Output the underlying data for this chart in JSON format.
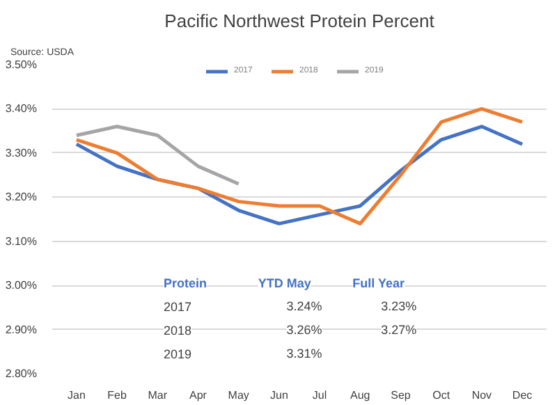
{
  "chart_data": {
    "type": "line",
    "title": "Pacific Northwest Protein Percent",
    "categories": [
      "Jan",
      "Feb",
      "Mar",
      "Apr",
      "May",
      "Jun",
      "Jul",
      "Aug",
      "Sep",
      "Oct",
      "Nov",
      "Dec"
    ],
    "series": [
      {
        "name": "2017",
        "color": "#4472c4",
        "values": [
          3.32,
          3.27,
          3.24,
          3.22,
          3.17,
          3.14,
          3.16,
          3.18,
          3.26,
          3.33,
          3.36,
          3.32
        ]
      },
      {
        "name": "2018",
        "color": "#ed7d31",
        "values": [
          3.33,
          3.3,
          3.24,
          3.22,
          3.19,
          3.18,
          3.18,
          3.14,
          3.25,
          3.37,
          3.4,
          3.37
        ]
      },
      {
        "name": "2019",
        "color": "#a5a5a5",
        "values": [
          3.34,
          3.36,
          3.34,
          3.27,
          3.23,
          null,
          null,
          null,
          null,
          null,
          null,
          null
        ]
      }
    ],
    "ylim": [
      2.8,
      3.5
    ],
    "yticks": [
      {
        "value": 2.8,
        "label": "2.80%"
      },
      {
        "value": 2.9,
        "label": "2.90%"
      },
      {
        "value": 3.0,
        "label": "3.00%"
      },
      {
        "value": 3.1,
        "label": "3.10%"
      },
      {
        "value": 3.2,
        "label": "3.20%"
      },
      {
        "value": 3.3,
        "label": "3.30%"
      },
      {
        "value": 3.4,
        "label": "3.40%"
      },
      {
        "value": 3.5,
        "label": "3.50%"
      }
    ],
    "grid": "y",
    "legend": "top",
    "marker": "none",
    "line_style": "solid",
    "annotations": [
      "Source: USDA",
      "Protein",
      "YTD May",
      "Full Year",
      "2017",
      "3.24%",
      "3.23%",
      "2018",
      "3.26%",
      "3.27%",
      "2019",
      "3.31%"
    ]
  }
}
